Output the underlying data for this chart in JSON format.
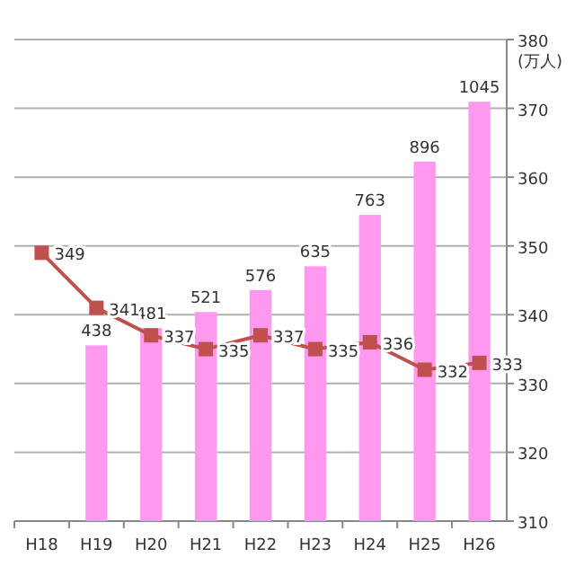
{
  "chart_data": {
    "type": "bar",
    "categories": [
      "H18",
      "H19",
      "H20",
      "H21",
      "H22",
      "H23",
      "H24",
      "H25",
      "H26"
    ],
    "series": [
      {
        "color": "#ff99f0",
        "values": [
          null,
          438,
          481,
          521,
          576,
          635,
          763,
          896,
          1045
        ]
      },
      {
        "type": "line",
        "axis": "y2",
        "color": "#c0504d",
        "values": [
          349,
          341,
          337,
          335,
          337,
          335,
          336,
          332,
          333
        ]
      }
    ],
    "ylim": [
      0,
      1200
    ],
    "y2lim": [
      310,
      380
    ],
    "y2ticks": [
      310,
      320,
      330,
      340,
      350,
      360,
      370,
      380
    ],
    "y2label": "(万人)",
    "data_labels": true,
    "grid": "y2",
    "marker": "square",
    "line_style": "solid"
  }
}
